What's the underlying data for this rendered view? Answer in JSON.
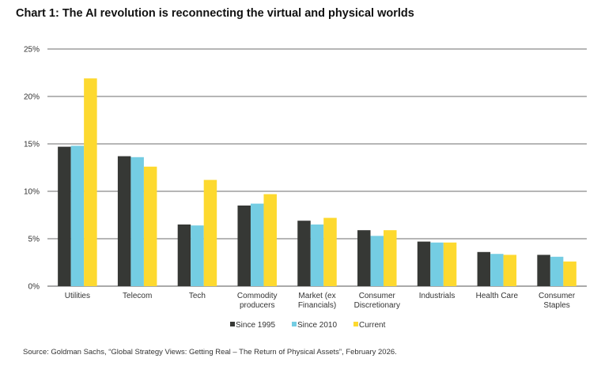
{
  "chart_data": {
    "type": "bar",
    "title": "Chart 1: The AI revolution is reconnecting the virtual and physical worlds",
    "xlabel": "",
    "ylabel": "",
    "ylim": [
      0,
      25
    ],
    "yticks": [
      "0%",
      "5%",
      "10%",
      "15%",
      "20%",
      "25%"
    ],
    "grid": true,
    "legend_position": "bottom",
    "categories": [
      "Utilities",
      "Telecom",
      "Tech",
      "Commodity producers",
      "Market (ex Financials)",
      "Consumer Discretionary",
      "Industrials",
      "Health Care",
      "Consumer Staples"
    ],
    "category_lines": [
      [
        "Utilities"
      ],
      [
        "Telecom"
      ],
      [
        "Tech"
      ],
      [
        "Commodity",
        "producers"
      ],
      [
        "Market (ex",
        "Financials)"
      ],
      [
        "Consumer",
        "Discretionary"
      ],
      [
        "Industrials"
      ],
      [
        "Health Care"
      ],
      [
        "Consumer",
        "Staples"
      ]
    ],
    "series": [
      {
        "name": "Since 1995",
        "color": "#363835",
        "values": [
          14.7,
          13.7,
          6.5,
          8.5,
          6.9,
          5.9,
          4.7,
          3.6,
          3.3
        ]
      },
      {
        "name": "Since 2010",
        "color": "#74cde3",
        "values": [
          14.8,
          13.6,
          6.4,
          8.7,
          6.5,
          5.3,
          4.6,
          3.4,
          3.1
        ]
      },
      {
        "name": "Current",
        "color": "#fdd92f",
        "values": [
          21.9,
          12.6,
          11.2,
          9.7,
          7.2,
          5.9,
          4.6,
          3.3,
          2.6
        ]
      }
    ]
  },
  "source": "Source: Goldman Sachs, “Global Strategy Views: Getting Real – The Return of Physical Assets”, February 2026."
}
